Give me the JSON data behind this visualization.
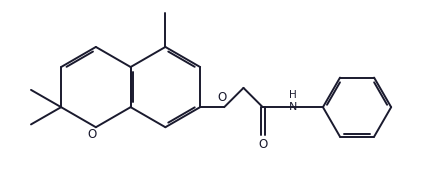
{
  "bg_color": "#ffffff",
  "line_color": "#1a1a2e",
  "line_width": 1.4,
  "font_size_O": 8.5,
  "font_size_NH": 8.0,
  "figsize": [
    4.26,
    1.86
  ],
  "dpi": 100,
  "xlim": [
    0,
    10
  ],
  "ylim": [
    0,
    4.37
  ]
}
